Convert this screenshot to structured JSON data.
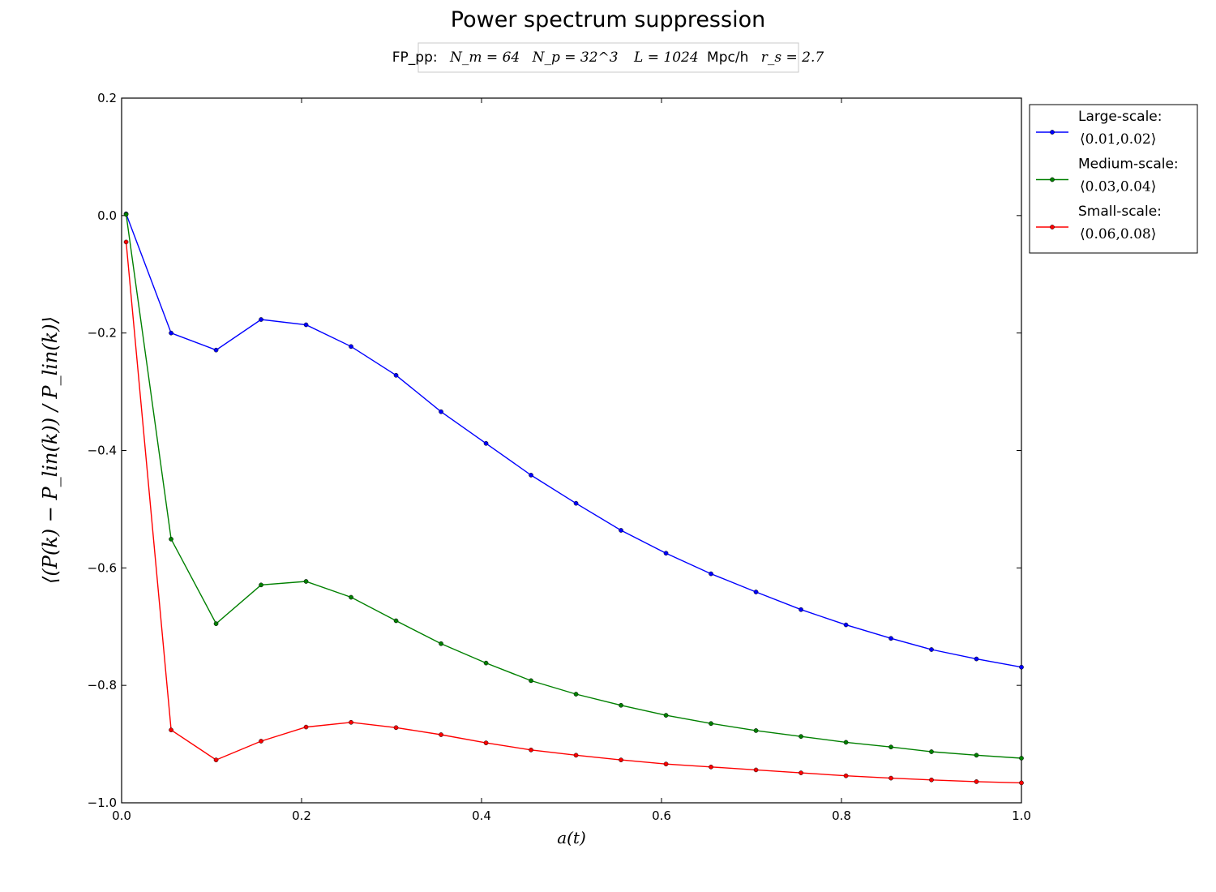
{
  "chart_data": {
    "type": "line",
    "title": "Power spectrum suppression",
    "subtitle": {
      "prefix": "FP_pp:",
      "nm": "N_m = 64",
      "np": "N_p = 32^3",
      "L": "L = 1024",
      "L_unit": "Mpc/h",
      "rs": "r_s = 2.7"
    },
    "xlabel": "a(t)",
    "ylabel": "⟨(P(k) − P_lin(k)) / P_lin(k)⟩",
    "xlim": [
      0.0,
      1.0
    ],
    "ylim": [
      -1.0,
      0.2
    ],
    "xticks": [
      "0.0",
      "0.2",
      "0.4",
      "0.6",
      "0.8",
      "1.0"
    ],
    "yticks": [
      "0.2",
      "0.0",
      "−0.2",
      "−0.4",
      "−0.6",
      "−0.8",
      "−1.0"
    ],
    "grid": false,
    "legend_position": "outside-right-top",
    "x": [
      0.005,
      0.055,
      0.105,
      0.155,
      0.205,
      0.255,
      0.305,
      0.355,
      0.405,
      0.455,
      0.505,
      0.555,
      0.605,
      0.655,
      0.705,
      0.755,
      0.805,
      0.855,
      0.9,
      0.95,
      1.0
    ],
    "series": [
      {
        "name": "Large-scale:",
        "range": "⟨0.01,0.02⟩",
        "color": "#0000ff",
        "values": [
          0.003,
          -0.2,
          -0.229,
          -0.177,
          -0.186,
          -0.223,
          -0.272,
          -0.334,
          -0.388,
          -0.442,
          -0.49,
          -0.536,
          -0.575,
          -0.61,
          -0.641,
          -0.671,
          -0.697,
          -0.72,
          -0.739,
          -0.755,
          -0.769
        ]
      },
      {
        "name": "Medium-scale:",
        "range": "⟨0.03,0.04⟩",
        "color": "#008000",
        "values": [
          0.002,
          -0.551,
          -0.695,
          -0.629,
          -0.623,
          -0.65,
          -0.69,
          -0.729,
          -0.762,
          -0.792,
          -0.815,
          -0.834,
          -0.851,
          -0.865,
          -0.877,
          -0.887,
          -0.897,
          -0.905,
          -0.913,
          -0.919,
          -0.924
        ]
      },
      {
        "name": "Small-scale:",
        "range": "⟨0.06,0.08⟩",
        "color": "#ff0000",
        "values": [
          -0.045,
          -0.876,
          -0.927,
          -0.895,
          -0.871,
          -0.863,
          -0.872,
          -0.884,
          -0.898,
          -0.91,
          -0.919,
          -0.927,
          -0.934,
          -0.939,
          -0.944,
          -0.949,
          -0.954,
          -0.958,
          -0.961,
          -0.964,
          -0.966
        ]
      }
    ]
  }
}
